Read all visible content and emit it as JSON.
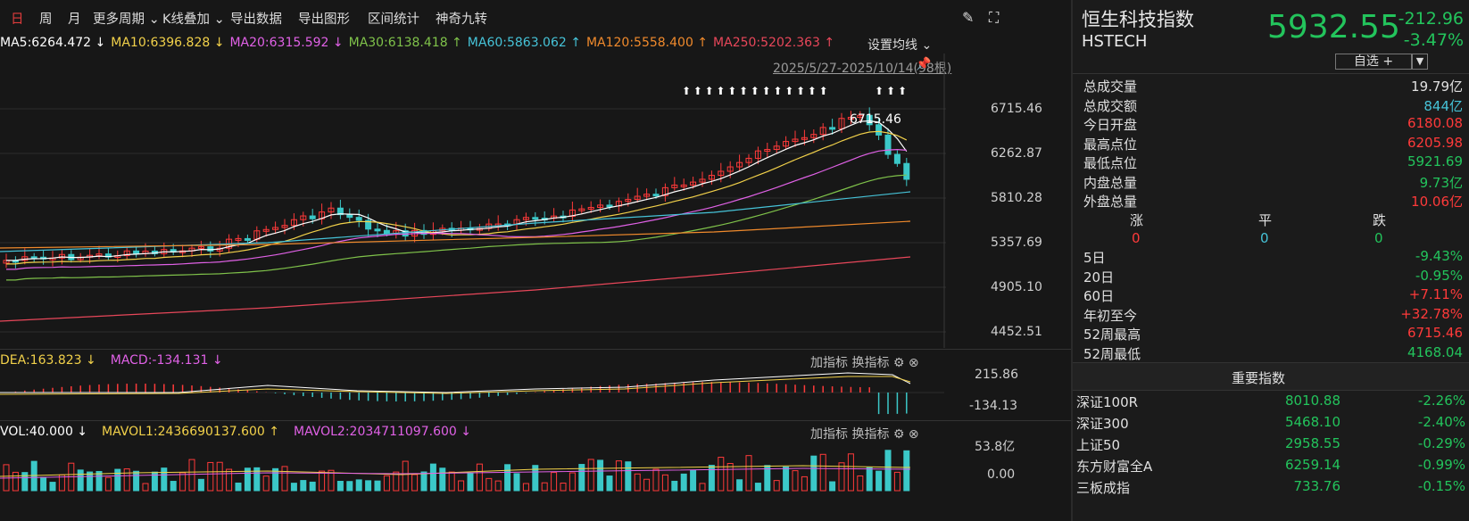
{
  "toolbar": {
    "day": "日",
    "week": "周",
    "month": "月",
    "more_periods": "更多周期",
    "kline_overlay": "K线叠加",
    "export_data": "导出数据",
    "export_chart": "导出图形",
    "range_stats": "区间统计",
    "magic_nine": "神奇九转"
  },
  "ma_legend": [
    {
      "text": "MA5:6264.472 ↓",
      "color": "#ffffff"
    },
    {
      "text": "MA10:6396.828 ↓",
      "color": "#f2d14a"
    },
    {
      "text": "MA20:6315.592 ↓",
      "color": "#e061e6"
    },
    {
      "text": "MA30:6138.418 ↑",
      "color": "#7fc24a"
    },
    {
      "text": "MA60:5863.062 ↑",
      "color": "#46c3d8"
    },
    {
      "text": "MA120:5558.400 ↑",
      "color": "#f08a2c"
    },
    {
      "text": "MA250:5202.363 ↑",
      "color": "#e8475a"
    }
  ],
  "ma_settings_label": "设置均线",
  "date_range": "2025/5/27-2025/10/14(98根)",
  "y_axis_main": [
    "6715.46",
    "6262.87",
    "5810.28",
    "5357.69",
    "4905.10",
    "4452.51"
  ],
  "peak_label": "6715.46",
  "macd": {
    "header": [
      {
        "text": "DEA:163.823 ↓",
        "color": "#f2d14a"
      },
      {
        "text": "MACD:-134.131 ↓",
        "color": "#e061e6"
      }
    ],
    "ticks": [
      "215.86",
      "-134.13"
    ]
  },
  "volume": {
    "header": [
      {
        "text": "VOL:40.000 ↓",
        "color": "#ffffff"
      },
      {
        "text": "MAVOL1:2436690137.600 ↑",
        "color": "#f2d14a"
      },
      {
        "text": "MAVOL2:2034711097.600 ↓",
        "color": "#e061e6"
      }
    ],
    "ticks": [
      "53.8亿",
      "0.00"
    ]
  },
  "indicator_tools": {
    "add": "加指标",
    "switch": "换指标"
  },
  "quote": {
    "name": "恒生科技指数",
    "code": "HSTECH",
    "price": "5932.55",
    "change": "-212.96",
    "change_pct": "-3.47%",
    "watchlist": "自选 +"
  },
  "stats": [
    {
      "label": "总成交量",
      "value": "19.79亿",
      "color": "#e0e0e0"
    },
    {
      "label": "总成交额",
      "value": "844亿",
      "color": "#46c3d8"
    },
    {
      "label": "今日开盘",
      "value": "6180.08",
      "color": "#ff3a3a"
    },
    {
      "label": "最高点位",
      "value": "6205.98",
      "color": "#ff3a3a"
    },
    {
      "label": "最低点位",
      "value": "5921.69",
      "color": "#23c45c"
    },
    {
      "label": "内盘总量",
      "value": "9.73亿",
      "color": "#23c45c"
    },
    {
      "label": "外盘总量",
      "value": "10.06亿",
      "color": "#ff3a3a"
    }
  ],
  "breadth": {
    "up_label": "涨",
    "flat_label": "平",
    "down_label": "跌",
    "up": "0",
    "flat": "0",
    "down": "0"
  },
  "returns": [
    {
      "label": "5日",
      "value": "-9.43%",
      "color": "#23c45c"
    },
    {
      "label": "20日",
      "value": "-0.95%",
      "color": "#23c45c"
    },
    {
      "label": "60日",
      "value": "+7.11%",
      "color": "#ff3a3a"
    },
    {
      "label": "年初至今",
      "value": "+32.78%",
      "color": "#ff3a3a"
    },
    {
      "label": "52周最高",
      "value": "6715.46",
      "color": "#ff3a3a"
    },
    {
      "label": "52周最低",
      "value": "4168.04",
      "color": "#23c45c"
    }
  ],
  "indices_title": "重要指数",
  "indices": [
    {
      "name": "深证100R",
      "price": "8010.88",
      "change": "-2.26%"
    },
    {
      "name": "深证300",
      "price": "5468.10",
      "change": "-2.40%"
    },
    {
      "name": "上证50",
      "price": "2958.55",
      "change": "-0.29%"
    },
    {
      "name": "东方财富全A",
      "price": "6259.14",
      "change": "-0.99%"
    },
    {
      "name": "三板成指",
      "price": "733.76",
      "change": "-0.15%"
    }
  ],
  "colors": {
    "up": "#ff3a3a",
    "down": "#23c45c",
    "down_candle": "#3bc8c8",
    "bg": "#171717"
  }
}
